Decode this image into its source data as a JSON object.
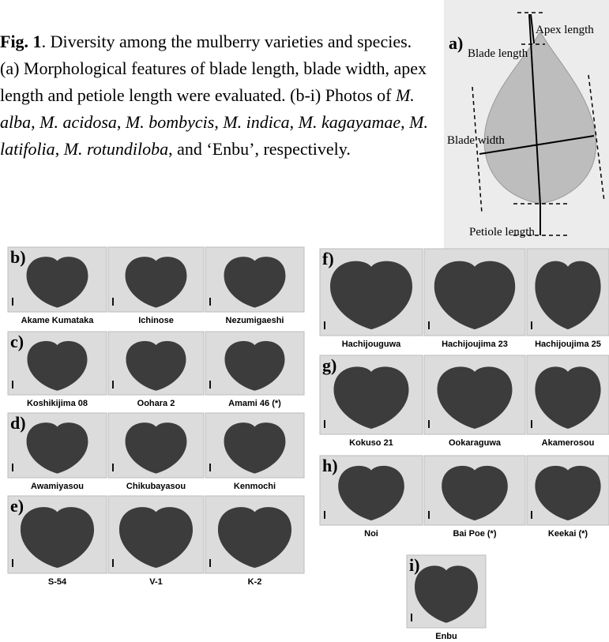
{
  "caption": {
    "runs": [
      {
        "text": "Fig. 1",
        "style": "bold"
      },
      {
        "text": ". Diversity among the mulberry varieties and species. (a) Morphological features of blade length, blade width, apex length and petiole length were evaluated. (b-i) Photos of ",
        "style": "normal"
      },
      {
        "text": "M. alba",
        "style": "italic"
      },
      {
        "text": ", ",
        "style": "normal"
      },
      {
        "text": "M. acidosa",
        "style": "italic"
      },
      {
        "text": ", ",
        "style": "normal"
      },
      {
        "text": "M. bombycis",
        "style": "italic"
      },
      {
        "text": ", ",
        "style": "normal"
      },
      {
        "text": "M. indica",
        "style": "italic"
      },
      {
        "text": ", ",
        "style": "normal"
      },
      {
        "text": "M. kagayamae",
        "style": "italic"
      },
      {
        "text": ", ",
        "style": "normal"
      },
      {
        "text": "M. latifolia",
        "style": "italic"
      },
      {
        "text": ", ",
        "style": "normal"
      },
      {
        "text": "M. rotundiloba",
        "style": "italic"
      },
      {
        "text": ", and ‘Enbu’, respectively.",
        "style": "normal"
      }
    ]
  },
  "diagram": {
    "label": "a)",
    "apex": "Apex length",
    "blade_length": "Blade length",
    "blade_width": "Blade width",
    "petiole": "Petiole length"
  },
  "panels": [
    {
      "label": "b)",
      "varieties": [
        "Akame Kumataka",
        "Ichinose",
        "Nezumigaeshi"
      ]
    },
    {
      "label": "c)",
      "varieties": [
        "Koshikijima 08",
        "Oohara 2",
        "Amami 46 (*)"
      ]
    },
    {
      "label": "d)",
      "varieties": [
        "Awamiyasou",
        "Chikubayasou",
        "Kenmochi"
      ]
    },
    {
      "label": "e)",
      "varieties": [
        "S-54",
        "V-1",
        "K-2"
      ]
    },
    {
      "label": "f)",
      "varieties": [
        "Hachijouguwa",
        "Hachijoujima 23",
        "Hachijoujima 25"
      ]
    },
    {
      "label": "g)",
      "varieties": [
        "Kokuso 21",
        "Ookaraguwa",
        "Akamerosou"
      ]
    },
    {
      "label": "h)",
      "varieties": [
        "Noi",
        "Bai Poe (*)",
        "Keekai (*)"
      ]
    },
    {
      "label": "i)",
      "varieties": [
        "Enbu"
      ]
    }
  ]
}
